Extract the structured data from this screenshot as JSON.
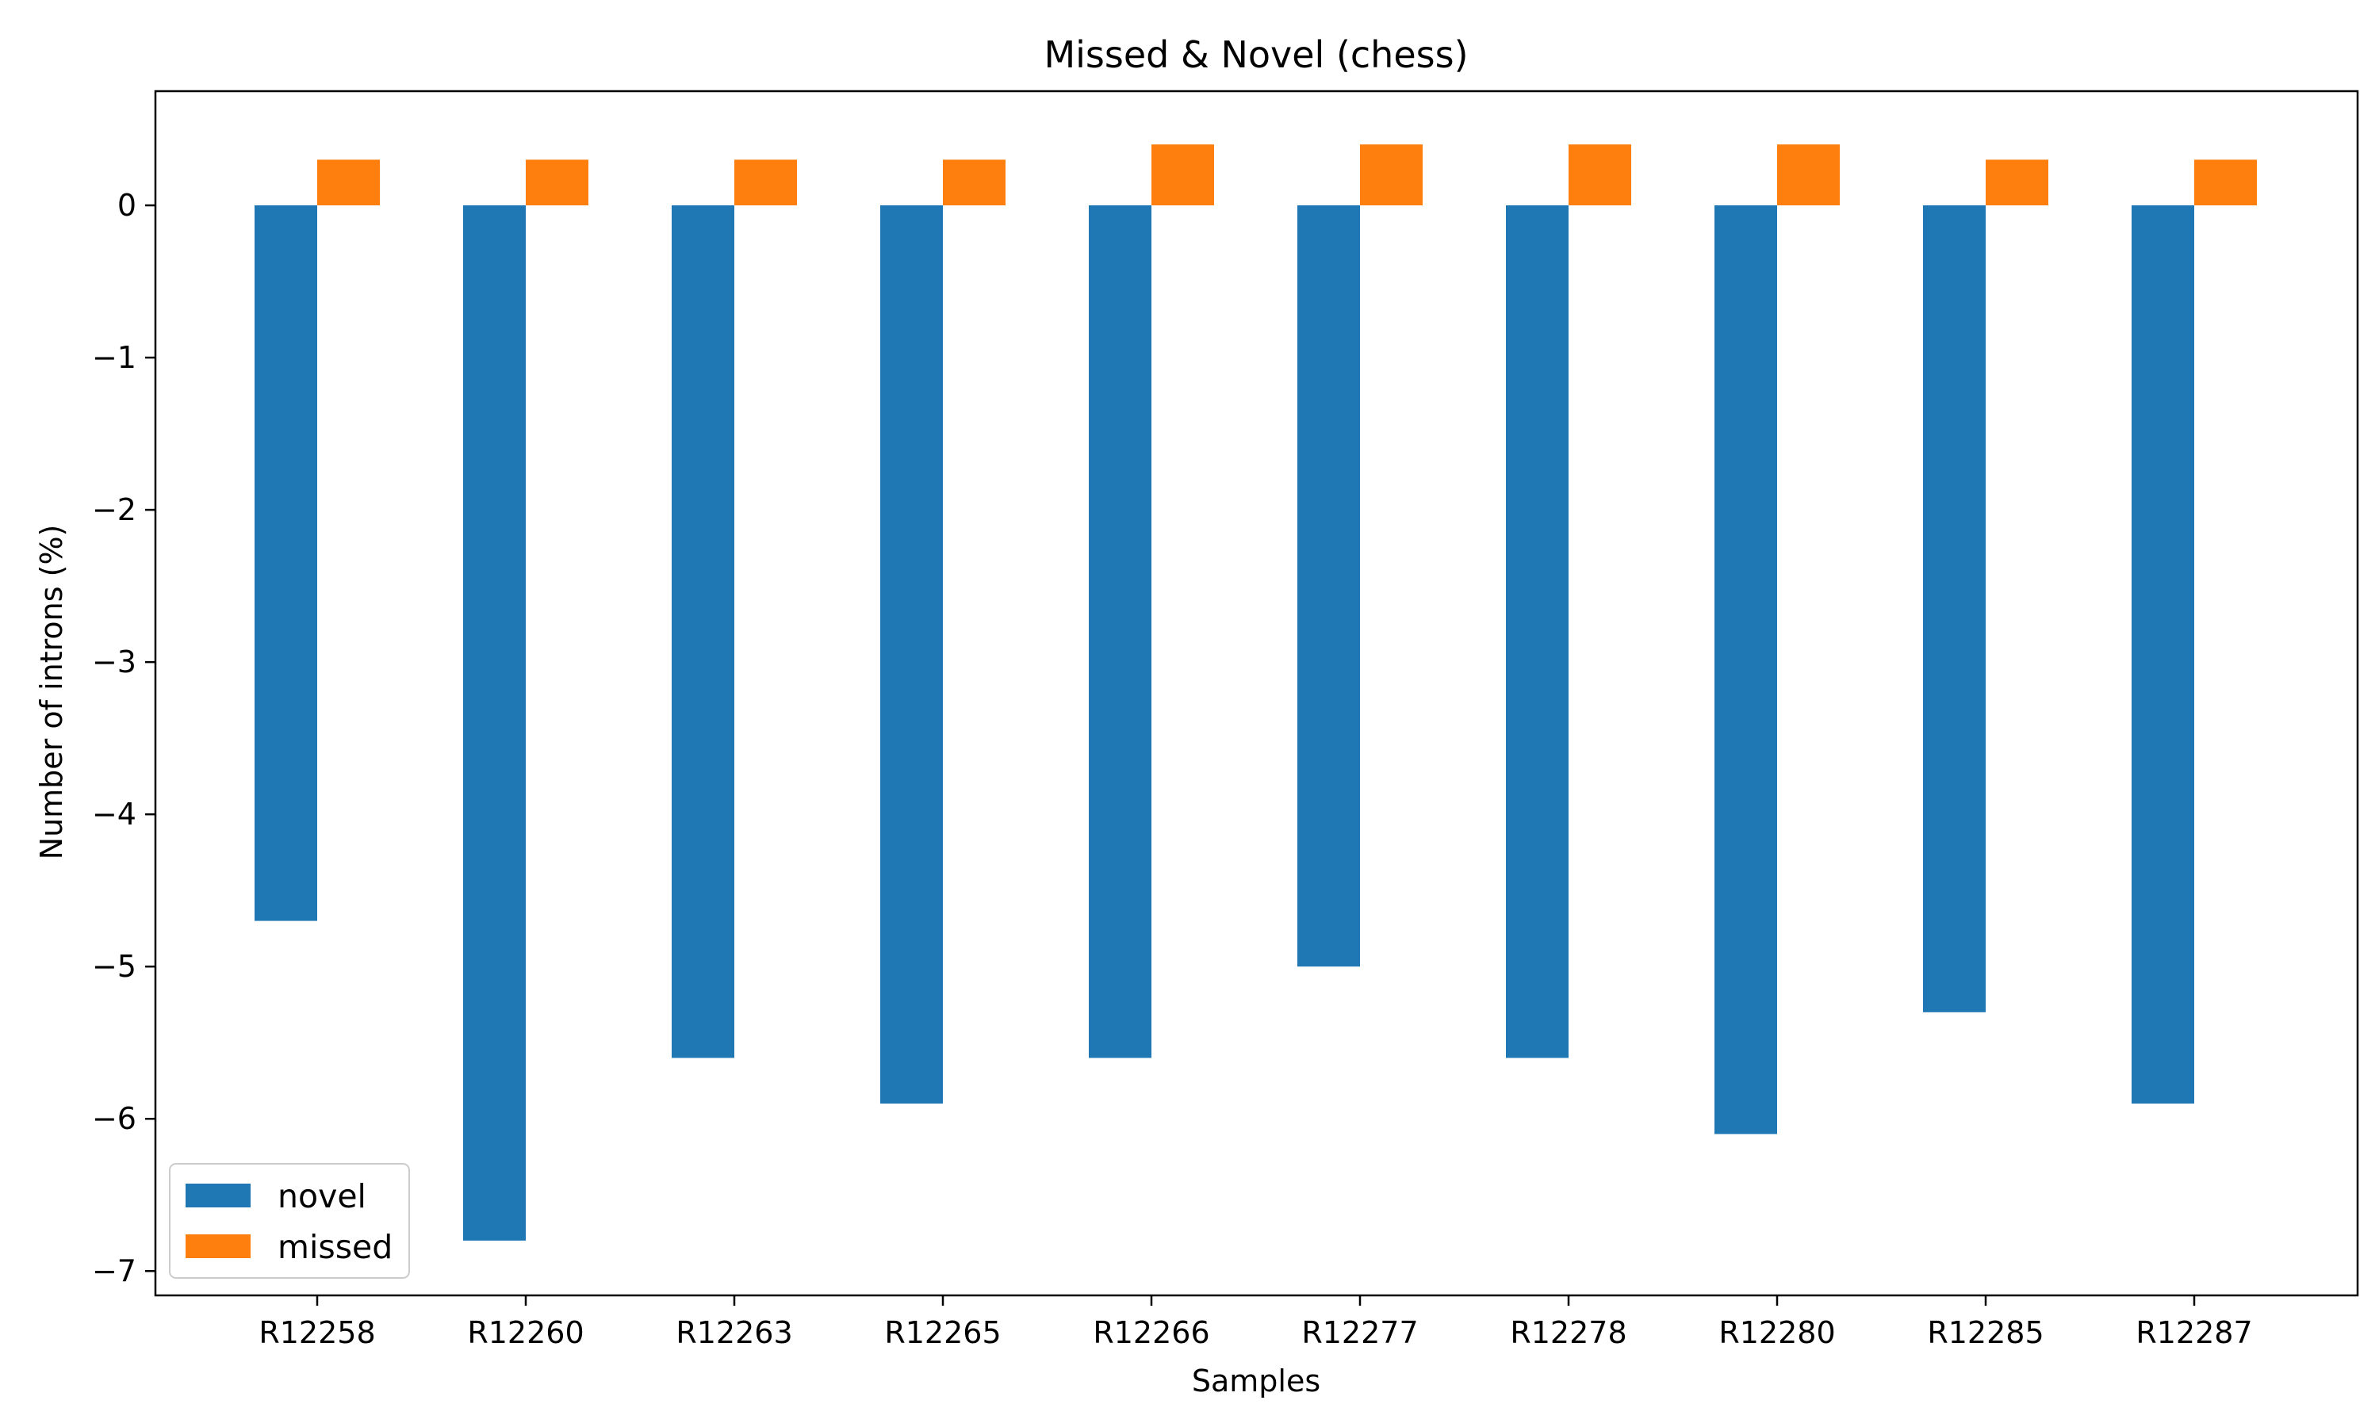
{
  "chart_data": {
    "type": "bar",
    "title": "Missed & Novel (chess)",
    "xlabel": "Samples",
    "ylabel": "Number of introns (%)",
    "categories": [
      "R12258",
      "R12260",
      "R12263",
      "R12265",
      "R12266",
      "R12277",
      "R12278",
      "R12280",
      "R12285",
      "R12287"
    ],
    "series": [
      {
        "name": "novel",
        "color": "#1f77b4",
        "values": [
          -4.7,
          -6.8,
          -5.6,
          -5.9,
          -5.6,
          -5.0,
          -5.6,
          -6.1,
          -5.3,
          -5.9
        ]
      },
      {
        "name": "missed",
        "color": "#ff7f0e",
        "values": [
          0.3,
          0.3,
          0.3,
          0.3,
          0.4,
          0.4,
          0.4,
          0.4,
          0.3,
          0.3
        ]
      }
    ],
    "ylim": [
      -7.16,
      0.75
    ],
    "yticks": [
      0,
      -1,
      -2,
      -3,
      -4,
      -5,
      -6,
      -7
    ],
    "ytick_labels": [
      "0",
      "−1",
      "−2",
      "−3",
      "−4",
      "−5",
      "−6",
      "−7"
    ],
    "legend_position": "lower-left",
    "grid": false
  }
}
